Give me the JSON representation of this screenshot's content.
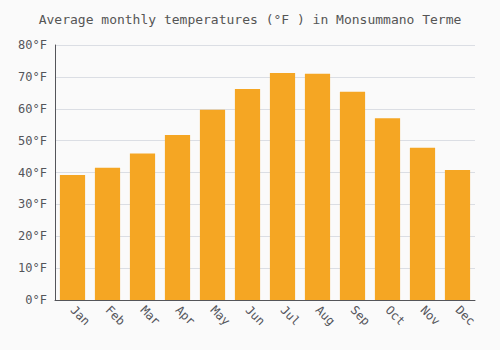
{
  "chart_data": {
    "type": "bar",
    "title": "Average monthly temperatures (°F ) in Monsummano Terme",
    "categories": [
      "Jan",
      "Feb",
      "Mar",
      "Apr",
      "May",
      "Jun",
      "Jul",
      "Aug",
      "Sep",
      "Oct",
      "Nov",
      "Dec"
    ],
    "values": [
      39.2,
      41.5,
      46.0,
      51.8,
      59.7,
      66.2,
      71.2,
      71.0,
      65.3,
      57.0,
      47.8,
      40.8
    ],
    "color": "#F5A623",
    "ylim": [
      0,
      80
    ],
    "yticks": [
      {
        "value": 0,
        "label": "0°F"
      },
      {
        "value": 10,
        "label": "10°F"
      },
      {
        "value": 20,
        "label": "20°F"
      },
      {
        "value": 30,
        "label": "30°F"
      },
      {
        "value": 40,
        "label": "40°F"
      },
      {
        "value": 50,
        "label": "50°F"
      },
      {
        "value": 60,
        "label": "60°F"
      },
      {
        "value": 70,
        "label": "70°F"
      },
      {
        "value": 80,
        "label": "80°F"
      }
    ],
    "grid": true
  }
}
